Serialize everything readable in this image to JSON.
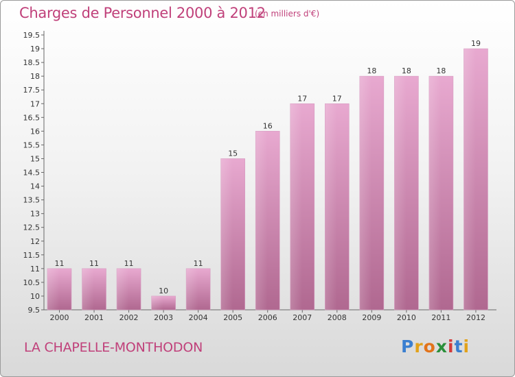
{
  "title": "Charges de Personnel 2000 à 2012",
  "subtitle": "(en milliers d'€)",
  "commune": "LA CHAPELLE-MONTHODON",
  "logo": {
    "letters": [
      "P",
      "r",
      "o",
      "x",
      "i",
      "t",
      "i"
    ],
    "colors": [
      "#3a7fd0",
      "#e2a21a",
      "#e2731a",
      "#2a8f3a",
      "#d23a3a",
      "#3a7fd0",
      "#e2a21a"
    ]
  },
  "colors": {
    "accent": "#c0407a",
    "bar_top": "#e8a9d0",
    "bar_bottom": "#b06890"
  },
  "chart_data": {
    "type": "bar",
    "categories": [
      "2000",
      "2001",
      "2002",
      "2003",
      "2004",
      "2005",
      "2006",
      "2007",
      "2008",
      "2009",
      "2010",
      "2011",
      "2012"
    ],
    "values": [
      11,
      11,
      11,
      10,
      11,
      15,
      16,
      17,
      17,
      18,
      18,
      18,
      19
    ],
    "data_labels": [
      "11",
      "11",
      "11",
      "10",
      "11",
      "15",
      "16",
      "17",
      "17",
      "18",
      "18",
      "18",
      "19"
    ],
    "yticks": [
      "9.5",
      "10",
      "10.5",
      "11",
      "11.5",
      "12",
      "12.5",
      "13",
      "13.5",
      "14",
      "14.5",
      "15",
      "15.5",
      "16",
      "16.5",
      "17",
      "17.5",
      "18",
      "18.5",
      "19",
      "19.5"
    ],
    "ylim": [
      9.5,
      19.5
    ],
    "grid": false
  }
}
